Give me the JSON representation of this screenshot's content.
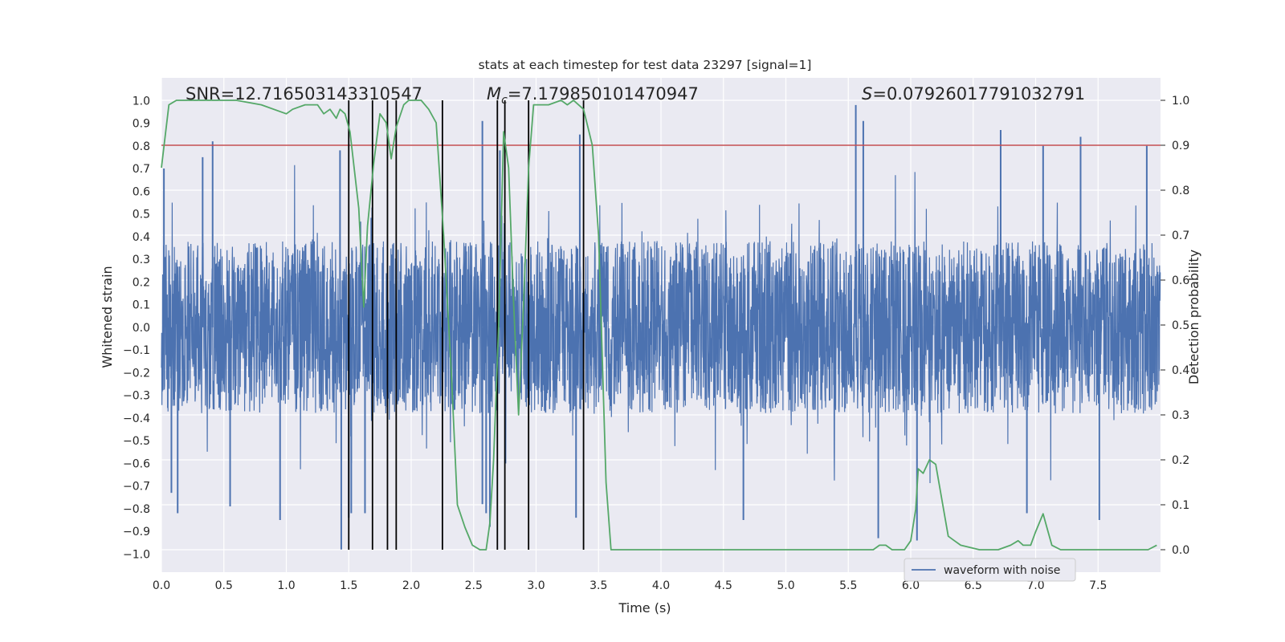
{
  "chart_data": {
    "type": "line",
    "title": "stats at each timestep for test data 23297 [signal=1]",
    "xlabel": "Time (s)",
    "ylabel": "Whitened strain",
    "y2label": "Detection probability",
    "xlim": [
      0.0,
      8.0
    ],
    "ylim": [
      -1.08,
      1.1
    ],
    "y2lim": [
      -0.05,
      1.05
    ],
    "x_ticks": [
      "0.0",
      "0.5",
      "1.0",
      "1.5",
      "2.0",
      "2.5",
      "3.0",
      "3.5",
      "4.0",
      "4.5",
      "5.0",
      "5.5",
      "6.0",
      "6.5",
      "7.0",
      "7.5"
    ],
    "x_tick_values": [
      0.0,
      0.5,
      1.0,
      1.5,
      2.0,
      2.5,
      3.0,
      3.5,
      4.0,
      4.5,
      5.0,
      5.5,
      6.0,
      6.5,
      7.0,
      7.5
    ],
    "y_ticks": [
      "1.0",
      "0.9",
      "0.8",
      "0.7",
      "0.6",
      "0.5",
      "0.4",
      "0.3",
      "0.2",
      "0.1",
      "0.0",
      "−0.1",
      "−0.2",
      "−0.3",
      "−0.4",
      "−0.5",
      "−0.6",
      "−0.7",
      "−0.8",
      "−0.9",
      "−1.0"
    ],
    "y_tick_values": [
      1.0,
      0.9,
      0.8,
      0.7,
      0.6,
      0.5,
      0.4,
      0.3,
      0.2,
      0.1,
      0.0,
      -0.1,
      -0.2,
      -0.3,
      -0.4,
      -0.5,
      -0.6,
      -0.7,
      -0.8,
      -0.9,
      -1.0
    ],
    "y2_ticks": [
      "1.0",
      "0.9",
      "0.8",
      "0.7",
      "0.6",
      "0.5",
      "0.4",
      "0.3",
      "0.2",
      "0.1",
      "0.0"
    ],
    "y2_tick_values": [
      1.0,
      0.9,
      0.8,
      0.7,
      0.6,
      0.5,
      0.4,
      0.3,
      0.2,
      0.1,
      0.0
    ],
    "annotations": {
      "snr": "SNR=12.716503143310547",
      "mc_symbol": "M",
      "mc_sub": "c",
      "mc_value": "=7.179850101470947",
      "s_symbol": "S",
      "s_value": "=0.07926017791032791"
    },
    "legend": {
      "label": "waveform with noise",
      "position": "lower-right"
    },
    "threshold": {
      "value": 0.9,
      "axis": "y2",
      "color": "#c44e52"
    },
    "event_lines": [
      1.5,
      1.69,
      1.81,
      1.88,
      2.25,
      2.69,
      2.75,
      2.94,
      3.38
    ],
    "waveform": {
      "name": "waveform with noise",
      "color": "#4c72b0",
      "envelope": 0.38,
      "seed": 23297,
      "n_samples": 4096,
      "spike_peaks_positive": [
        [
          0.02,
          0.7
        ],
        [
          0.33,
          0.75
        ],
        [
          0.41,
          0.82
        ],
        [
          1.43,
          0.78
        ],
        [
          2.57,
          0.91
        ],
        [
          2.71,
          0.78
        ],
        [
          3.35,
          0.85
        ],
        [
          5.56,
          0.98
        ],
        [
          5.62,
          0.91
        ],
        [
          6.72,
          0.87
        ],
        [
          7.06,
          0.8
        ],
        [
          7.36,
          0.84
        ],
        [
          7.89,
          0.8
        ]
      ],
      "spike_peaks_negative": [
        [
          0.08,
          -0.73
        ],
        [
          0.13,
          -0.82
        ],
        [
          0.55,
          -0.79
        ],
        [
          0.95,
          -0.85
        ],
        [
          1.44,
          -0.98
        ],
        [
          1.5,
          -0.84
        ],
        [
          1.52,
          -0.82
        ],
        [
          1.63,
          -0.82
        ],
        [
          2.57,
          -0.78
        ],
        [
          2.6,
          -0.82
        ],
        [
          2.63,
          -0.88
        ],
        [
          3.32,
          -0.84
        ],
        [
          4.66,
          -0.85
        ],
        [
          5.74,
          -0.93
        ],
        [
          6.05,
          -0.94
        ],
        [
          6.93,
          -0.82
        ],
        [
          7.51,
          -0.85
        ]
      ]
    },
    "probability": {
      "name": "detection probability",
      "color": "#55a868",
      "x": [
        0.0,
        0.06,
        0.12,
        0.3,
        0.6,
        0.8,
        1.0,
        1.05,
        1.15,
        1.25,
        1.3,
        1.35,
        1.4,
        1.43,
        1.47,
        1.51,
        1.58,
        1.62,
        1.65,
        1.7,
        1.75,
        1.8,
        1.84,
        1.88,
        1.94,
        1.98,
        2.02,
        2.08,
        2.14,
        2.2,
        2.26,
        2.32,
        2.37,
        2.43,
        2.49,
        2.55,
        2.6,
        2.63,
        2.66,
        2.7,
        2.74,
        2.78,
        2.82,
        2.86,
        2.9,
        2.94,
        2.98,
        3.02,
        3.1,
        3.2,
        3.25,
        3.3,
        3.38,
        3.45,
        3.5,
        3.56,
        3.6,
        3.65,
        3.8,
        4.0,
        4.1,
        4.2,
        4.5,
        4.8,
        5.0,
        5.3,
        5.5,
        5.6,
        5.7,
        5.75,
        5.8,
        5.85,
        5.9,
        5.95,
        6.0,
        6.04,
        6.06,
        6.1,
        6.15,
        6.2,
        6.25,
        6.3,
        6.35,
        6.4,
        6.55,
        6.7,
        6.8,
        6.86,
        6.9,
        6.96,
        7.0,
        7.06,
        7.1,
        7.13,
        7.2,
        7.3,
        7.4,
        7.6,
        7.7,
        7.8,
        7.9,
        7.97
      ],
      "values": [
        0.85,
        0.99,
        1.0,
        1.0,
        1.0,
        0.99,
        0.97,
        0.98,
        0.99,
        0.99,
        0.97,
        0.98,
        0.96,
        0.98,
        0.97,
        0.93,
        0.76,
        0.54,
        0.72,
        0.86,
        0.97,
        0.95,
        0.87,
        0.94,
        0.99,
        1.0,
        1.0,
        1.0,
        0.98,
        0.95,
        0.7,
        0.4,
        0.1,
        0.05,
        0.01,
        0.0,
        0.0,
        0.06,
        0.2,
        0.5,
        0.93,
        0.85,
        0.55,
        0.3,
        0.55,
        0.85,
        0.99,
        0.99,
        0.99,
        1.0,
        0.99,
        1.0,
        0.98,
        0.9,
        0.7,
        0.15,
        0.0,
        0.0,
        0.0,
        0.0,
        0.0,
        0.0,
        0.0,
        0.0,
        0.0,
        0.0,
        0.0,
        0.0,
        0.0,
        0.01,
        0.01,
        0.0,
        0.0,
        0.0,
        0.02,
        0.09,
        0.18,
        0.17,
        0.2,
        0.19,
        0.11,
        0.03,
        0.02,
        0.01,
        0.0,
        0.0,
        0.01,
        0.02,
        0.01,
        0.01,
        0.04,
        0.08,
        0.04,
        0.01,
        0.0,
        0.0,
        0.0,
        0.0,
        0.0,
        0.0,
        0.0,
        0.01
      ]
    }
  }
}
